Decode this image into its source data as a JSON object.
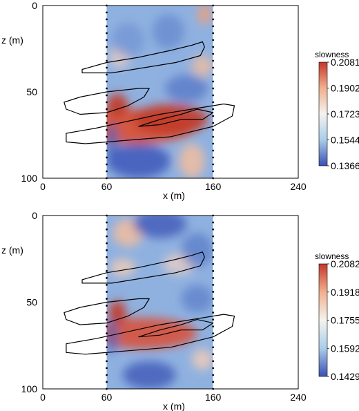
{
  "chart_data": [
    {
      "type": "heatmap",
      "xlabel": "x (m)",
      "ylabel": "z (m)",
      "xlim": [
        0,
        240
      ],
      "ylim": [
        0,
        100
      ],
      "y_inverted": true,
      "x_ticks": [
        "0",
        "60",
        "160",
        "240"
      ],
      "y_ticks": [
        "0",
        "50",
        "100"
      ],
      "imaged_region_x": [
        60,
        160
      ],
      "colorbar": {
        "title": "slowness",
        "ticks": [
          "0.20814",
          "0.19026",
          "0.17238",
          "0.15449",
          "0.13661"
        ],
        "colormap": [
          "#3a4fb5",
          "#a9cdea",
          "#f4f3ef",
          "#f1b08e",
          "#c4372b"
        ]
      },
      "outlines": [
        [
          [
            37,
            37
          ],
          [
            60,
            33
          ],
          [
            90,
            30
          ],
          [
            120,
            26
          ],
          [
            140,
            23
          ],
          [
            150,
            21
          ],
          [
            152,
            24
          ],
          [
            148,
            29
          ],
          [
            125,
            33
          ],
          [
            95,
            36
          ],
          [
            65,
            39
          ],
          [
            37,
            39
          ],
          [
            37,
            37
          ]
        ],
        [
          [
            20,
            56
          ],
          [
            35,
            53
          ],
          [
            60,
            50
          ],
          [
            90,
            48
          ],
          [
            100,
            48
          ],
          [
            95,
            53
          ],
          [
            80,
            58
          ],
          [
            60,
            62
          ],
          [
            35,
            63
          ],
          [
            22,
            60
          ],
          [
            20,
            56
          ]
        ],
        [
          [
            22,
            74
          ],
          [
            50,
            71
          ],
          [
            80,
            67
          ],
          [
            110,
            63
          ],
          [
            140,
            60
          ],
          [
            170,
            57
          ],
          [
            180,
            58
          ],
          [
            178,
            64
          ],
          [
            160,
            70
          ],
          [
            120,
            76
          ],
          [
            80,
            78
          ],
          [
            40,
            80
          ],
          [
            22,
            79
          ],
          [
            22,
            74
          ]
        ],
        [
          [
            90,
            70
          ],
          [
            110,
            66
          ],
          [
            130,
            63
          ],
          [
            145,
            60
          ],
          [
            160,
            62
          ],
          [
            150,
            66
          ],
          [
            130,
            66
          ],
          [
            110,
            69
          ],
          [
            90,
            70
          ]
        ]
      ]
    },
    {
      "type": "heatmap",
      "xlabel": "x (m)",
      "ylabel": "z (m)",
      "xlim": [
        0,
        240
      ],
      "ylim": [
        0,
        100
      ],
      "y_inverted": true,
      "x_ticks": [
        "0",
        "60",
        "160",
        "240"
      ],
      "y_ticks": [
        "0",
        "50",
        "100"
      ],
      "imaged_region_x": [
        60,
        160
      ],
      "colorbar": {
        "title": "slowness",
        "ticks": [
          "0.20820",
          "0.19189",
          "0.17558",
          "0.15926",
          "0.14295"
        ],
        "colormap": [
          "#3a4fb5",
          "#a9cdea",
          "#f4f3ef",
          "#f1b08e",
          "#c4372b"
        ]
      },
      "outlines": [
        [
          [
            37,
            37
          ],
          [
            60,
            33
          ],
          [
            90,
            30
          ],
          [
            120,
            26
          ],
          [
            140,
            23
          ],
          [
            150,
            21
          ],
          [
            152,
            24
          ],
          [
            148,
            29
          ],
          [
            125,
            33
          ],
          [
            95,
            36
          ],
          [
            65,
            39
          ],
          [
            37,
            39
          ],
          [
            37,
            37
          ]
        ],
        [
          [
            20,
            56
          ],
          [
            35,
            53
          ],
          [
            60,
            50
          ],
          [
            90,
            48
          ],
          [
            100,
            48
          ],
          [
            95,
            53
          ],
          [
            80,
            58
          ],
          [
            60,
            62
          ],
          [
            35,
            63
          ],
          [
            22,
            60
          ],
          [
            20,
            56
          ]
        ],
        [
          [
            22,
            74
          ],
          [
            50,
            71
          ],
          [
            80,
            67
          ],
          [
            110,
            63
          ],
          [
            140,
            60
          ],
          [
            170,
            57
          ],
          [
            180,
            58
          ],
          [
            178,
            64
          ],
          [
            160,
            70
          ],
          [
            120,
            76
          ],
          [
            80,
            78
          ],
          [
            40,
            80
          ],
          [
            22,
            79
          ],
          [
            22,
            74
          ]
        ],
        [
          [
            90,
            70
          ],
          [
            110,
            66
          ],
          [
            130,
            63
          ],
          [
            145,
            60
          ],
          [
            160,
            62
          ],
          [
            150,
            66
          ],
          [
            130,
            66
          ],
          [
            110,
            69
          ],
          [
            90,
            70
          ]
        ]
      ],
      "hotspots": "not-bound"
    }
  ]
}
